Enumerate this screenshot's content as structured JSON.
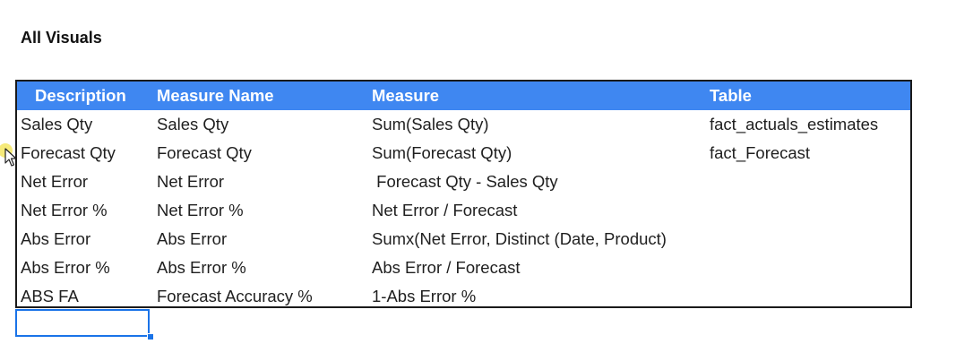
{
  "sheet": {
    "title": "All Visuals"
  },
  "table": {
    "header_color": "#3f87f1",
    "columns": [
      "Description",
      "Measure Name",
      "Measure",
      "Table"
    ],
    "rows": [
      [
        "Sales Qty",
        "Sales Qty",
        "Sum(Sales Qty)",
        "fact_actuals_estimates"
      ],
      [
        "Forecast Qty",
        "Forecast Qty",
        "Sum(Forecast Qty)",
        "fact_Forecast"
      ],
      [
        "Net Error",
        "Net Error",
        " Forecast Qty - Sales Qty",
        ""
      ],
      [
        "Net Error %",
        "Net Error %",
        "Net Error / Forecast",
        ""
      ],
      [
        "Abs Error",
        "Abs Error",
        "Sumx(Net Error, Distinct (Date, Product)",
        ""
      ],
      [
        "Abs Error %",
        "Abs Error %",
        "Abs Error / Forecast",
        ""
      ],
      [
        "ABS FA",
        "Forecast Accuracy %",
        "1-Abs Error %",
        ""
      ]
    ]
  },
  "selection": {
    "color": "#1a73e8"
  },
  "cursor": {
    "icon": "mouse-pointer-icon",
    "highlight_color": "#f5e663"
  }
}
